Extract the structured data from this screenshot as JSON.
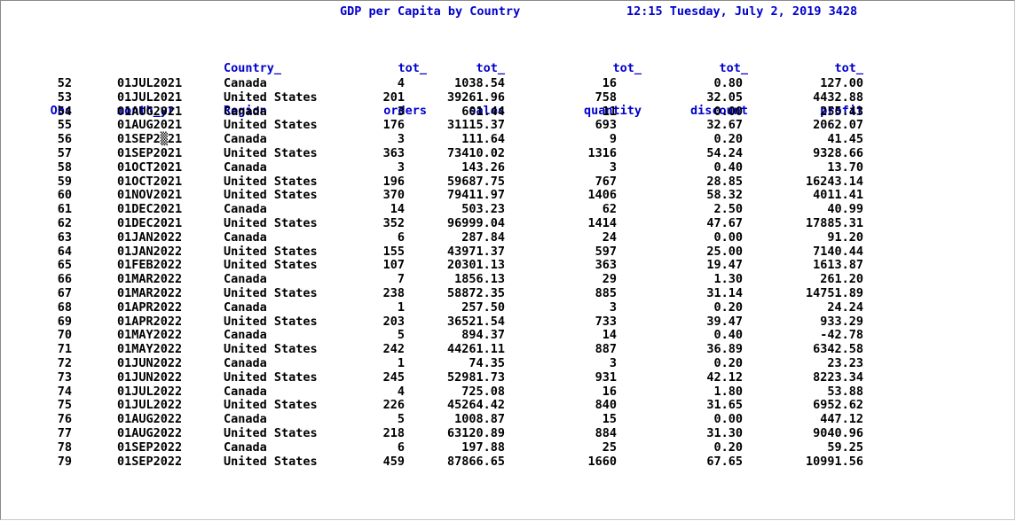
{
  "title": "GDP per Capita by Country",
  "datetime": "12:15 Tuesday, July 2, 2019 3428",
  "headers": {
    "obs": [
      "",
      "Obs"
    ],
    "month": [
      "",
      "month_yr"
    ],
    "country": [
      "Country_",
      "Region"
    ],
    "orders": [
      "tot_",
      "orders"
    ],
    "sales": [
      "tot_",
      "sales"
    ],
    "quantity": [
      "tot_",
      "quantity"
    ],
    "discount": [
      "tot_",
      "discount"
    ],
    "profit": [
      "tot_",
      "profit"
    ]
  },
  "rows": [
    [
      "52",
      "01JUL2021",
      "Canada",
      "4",
      "1038.54",
      "16",
      "0.80",
      "127.00"
    ],
    [
      "53",
      "01JUL2021",
      "United States",
      "201",
      "39261.96",
      "758",
      "32.05",
      "4432.88"
    ],
    [
      "54",
      "01AUG2021",
      "Canada",
      "3",
      "601.44",
      "11",
      "0.00",
      "255.43"
    ],
    [
      "55",
      "01AUG2021",
      "United States",
      "176",
      "31115.37",
      "693",
      "32.67",
      "2062.07"
    ],
    [
      "56",
      "01SEP2▒21",
      "Canada",
      "3",
      "111.64",
      "9",
      "0.20",
      "41.45"
    ],
    [
      "57",
      "01SEP2021",
      "United States",
      "363",
      "73410.02",
      "1316",
      "54.24",
      "9328.66"
    ],
    [
      "58",
      "01OCT2021",
      "Canada",
      "3",
      "143.26",
      "3",
      "0.40",
      "13.70"
    ],
    [
      "59",
      "01OCT2021",
      "United States",
      "196",
      "59687.75",
      "767",
      "28.85",
      "16243.14"
    ],
    [
      "60",
      "01NOV2021",
      "United States",
      "370",
      "79411.97",
      "1406",
      "58.32",
      "4011.41"
    ],
    [
      "61",
      "01DEC2021",
      "Canada",
      "14",
      "503.23",
      "62",
      "2.50",
      "40.99"
    ],
    [
      "62",
      "01DEC2021",
      "United States",
      "352",
      "96999.04",
      "1414",
      "47.67",
      "17885.31"
    ],
    [
      "63",
      "01JAN2022",
      "Canada",
      "6",
      "287.84",
      "24",
      "0.00",
      "91.20"
    ],
    [
      "64",
      "01JAN2022",
      "United States",
      "155",
      "43971.37",
      "597",
      "25.00",
      "7140.44"
    ],
    [
      "65",
      "01FEB2022",
      "United States",
      "107",
      "20301.13",
      "363",
      "19.47",
      "1613.87"
    ],
    [
      "66",
      "01MAR2022",
      "Canada",
      "7",
      "1856.13",
      "29",
      "1.30",
      "261.20"
    ],
    [
      "67",
      "01MAR2022",
      "United States",
      "238",
      "58872.35",
      "885",
      "31.14",
      "14751.89"
    ],
    [
      "68",
      "01APR2022",
      "Canada",
      "1",
      "257.50",
      "3",
      "0.20",
      "24.24"
    ],
    [
      "69",
      "01APR2022",
      "United States",
      "203",
      "36521.54",
      "733",
      "39.47",
      "933.29"
    ],
    [
      "70",
      "01MAY2022",
      "Canada",
      "5",
      "894.37",
      "14",
      "0.40",
      "-42.78"
    ],
    [
      "71",
      "01MAY2022",
      "United States",
      "242",
      "44261.11",
      "887",
      "36.89",
      "6342.58"
    ],
    [
      "72",
      "01JUN2022",
      "Canada",
      "1",
      "74.35",
      "3",
      "0.20",
      "23.23"
    ],
    [
      "73",
      "01JUN2022",
      "United States",
      "245",
      "52981.73",
      "931",
      "42.12",
      "8223.34"
    ],
    [
      "74",
      "01JUL2022",
      "Canada",
      "4",
      "725.08",
      "16",
      "1.80",
      "53.88"
    ],
    [
      "75",
      "01JUL2022",
      "United States",
      "226",
      "45264.42",
      "840",
      "31.65",
      "6952.62"
    ],
    [
      "76",
      "01AUG2022",
      "Canada",
      "5",
      "1008.87",
      "15",
      "0.00",
      "447.12"
    ],
    [
      "77",
      "01AUG2022",
      "United States",
      "218",
      "63120.89",
      "884",
      "31.30",
      "9040.96"
    ],
    [
      "78",
      "01SEP2022",
      "Canada",
      "6",
      "197.88",
      "25",
      "0.20",
      "59.25"
    ],
    [
      "79",
      "01SEP2022",
      "United States",
      "459",
      "87866.65",
      "1660",
      "67.65",
      "10991.56"
    ]
  ]
}
